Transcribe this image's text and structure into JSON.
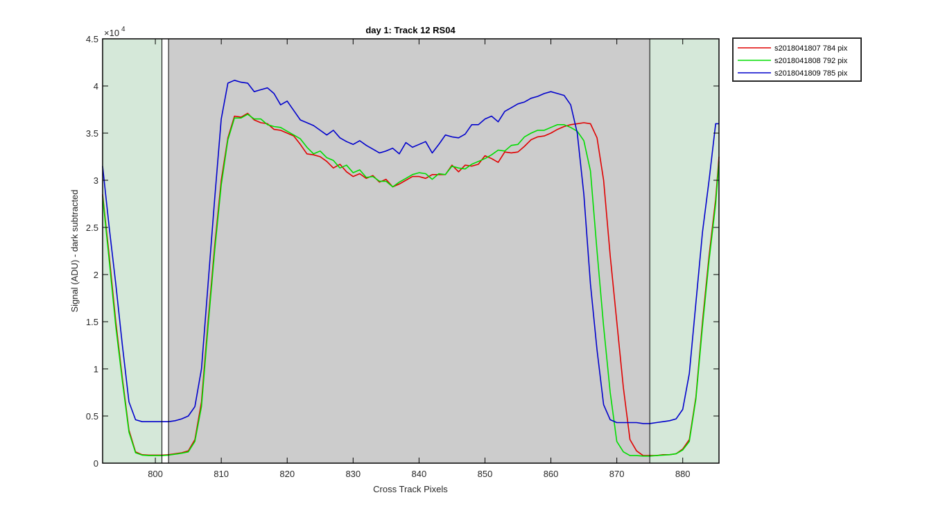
{
  "chart_data": {
    "type": "line",
    "title": "day 1: Track 12  RS04",
    "xlabel": "Cross Track Pixels",
    "ylabel": "Signal (ADU) - dark subtracted",
    "y_exponent_label": "×10",
    "y_exponent": "4",
    "xlim": [
      792,
      885.5
    ],
    "ylim": [
      0,
      45000
    ],
    "xticks": [
      800,
      810,
      820,
      830,
      840,
      850,
      860,
      870,
      880
    ],
    "yticks": [
      0,
      5000,
      10000,
      15000,
      20000,
      25000,
      30000,
      35000,
      40000,
      45000
    ],
    "ytick_labels": [
      "0",
      "0.5",
      "1",
      "1.5",
      "2",
      "2.5",
      "3",
      "3.5",
      "4",
      "4.5"
    ],
    "grid": false,
    "legend_position": "outside-top-right",
    "shaded_regions": [
      {
        "x0": 792,
        "x1": 801,
        "color": "#d5e8d9"
      },
      {
        "x0": 802,
        "x1": 875,
        "color": "#cccccc"
      },
      {
        "x0": 875,
        "x1": 885.5,
        "color": "#d5e8d9"
      }
    ],
    "vertical_lines": [
      801,
      802,
      875
    ],
    "x": [
      792,
      793,
      794,
      795,
      796,
      797,
      798,
      799,
      800,
      801,
      802,
      803,
      804,
      805,
      806,
      807,
      808,
      809,
      810,
      811,
      812,
      813,
      814,
      815,
      816,
      817,
      818,
      819,
      820,
      821,
      822,
      823,
      824,
      825,
      826,
      827,
      828,
      829,
      830,
      831,
      832,
      833,
      834,
      835,
      836,
      837,
      838,
      839,
      840,
      841,
      842,
      843,
      844,
      845,
      846,
      847,
      848,
      849,
      850,
      851,
      852,
      853,
      854,
      855,
      856,
      857,
      858,
      859,
      860,
      861,
      862,
      863,
      864,
      865,
      866,
      867,
      868,
      869,
      870,
      871,
      872,
      873,
      874,
      875,
      876,
      877,
      878,
      879,
      880,
      881,
      882,
      883,
      884,
      885,
      885.5
    ],
    "series": [
      {
        "name": "s2018041807 784 pix",
        "color": "#e00000",
        "values": [
          28500,
          22000,
          15000,
          9000,
          3500,
          1200,
          900,
          850,
          850,
          850,
          900,
          1000,
          1100,
          1300,
          2500,
          6500,
          15000,
          23000,
          30000,
          34500,
          36800,
          36700,
          37100,
          36400,
          36100,
          36000,
          35400,
          35300,
          35000,
          34700,
          33800,
          32800,
          32700,
          32500,
          32000,
          31300,
          31700,
          30900,
          30400,
          30700,
          30200,
          30500,
          29800,
          30100,
          29300,
          29600,
          30000,
          30400,
          30400,
          30200,
          30600,
          30600,
          30600,
          31600,
          30900,
          31600,
          31500,
          31700,
          32600,
          32300,
          31900,
          33000,
          32900,
          33000,
          33600,
          34300,
          34600,
          34700,
          35000,
          35400,
          35700,
          35900,
          36000,
          36100,
          36000,
          34500,
          30000,
          22000,
          15000,
          8000,
          2500,
          1300,
          800,
          800,
          800,
          900,
          900,
          1000,
          1500,
          2500,
          7000,
          15000,
          22000,
          28000,
          32500
        ]
      },
      {
        "name": "s2018041808 792 pix",
        "color": "#00dd00",
        "values": [
          28300,
          21500,
          14500,
          8700,
          3300,
          1100,
          850,
          800,
          800,
          800,
          850,
          950,
          1050,
          1200,
          2300,
          6000,
          14500,
          22500,
          29500,
          34300,
          36600,
          36600,
          37000,
          36500,
          36500,
          35900,
          35700,
          35600,
          35200,
          34800,
          34400,
          33500,
          32800,
          33100,
          32400,
          32100,
          31300,
          31600,
          30800,
          31100,
          30300,
          30400,
          29900,
          29900,
          29300,
          29800,
          30200,
          30600,
          30800,
          30700,
          30100,
          30700,
          30600,
          31500,
          31300,
          31200,
          31700,
          32000,
          32300,
          32700,
          33200,
          33100,
          33700,
          33800,
          34600,
          35000,
          35300,
          35300,
          35600,
          35900,
          35900,
          35600,
          35200,
          34200,
          31000,
          22500,
          14500,
          7500,
          2300,
          1200,
          800,
          800,
          750,
          750,
          800,
          850,
          900,
          1000,
          1400,
          2300,
          6800,
          14500,
          21500,
          27500,
          32000
        ]
      },
      {
        "name": "s2018041809 785 pix",
        "color": "#0000cc",
        "values": [
          31500,
          25000,
          19000,
          12500,
          6500,
          4600,
          4400,
          4400,
          4400,
          4400,
          4400,
          4500,
          4700,
          5000,
          6000,
          10000,
          19000,
          28000,
          36500,
          40300,
          40600,
          40400,
          40300,
          39400,
          39600,
          39800,
          39200,
          38000,
          38400,
          37400,
          36400,
          36100,
          35800,
          35300,
          34800,
          35300,
          34500,
          34100,
          33800,
          34200,
          33700,
          33300,
          32900,
          33100,
          33400,
          32800,
          34000,
          33500,
          33800,
          34100,
          32900,
          33800,
          34800,
          34600,
          34500,
          34900,
          35900,
          35900,
          36500,
          36800,
          36200,
          37300,
          37700,
          38100,
          38300,
          38700,
          38900,
          39200,
          39400,
          39200,
          39000,
          38000,
          35000,
          28500,
          19000,
          12000,
          6200,
          4600,
          4300,
          4300,
          4300,
          4300,
          4200,
          4200,
          4300,
          4400,
          4500,
          4700,
          5700,
          9500,
          17000,
          24500,
          30000,
          36000,
          36000
        ]
      }
    ]
  }
}
